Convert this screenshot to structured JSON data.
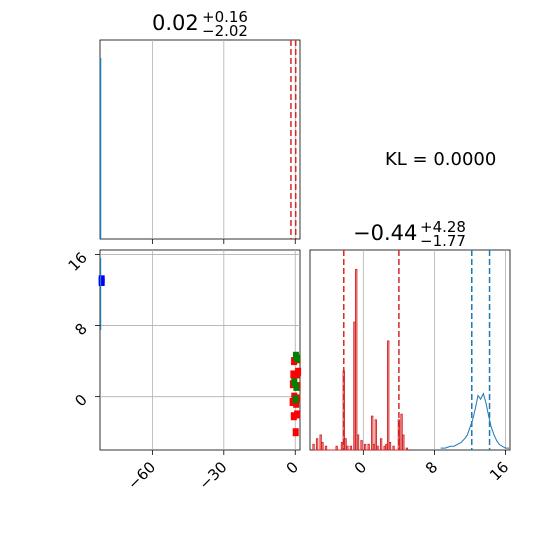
{
  "chart_data": [
    {
      "id": "hist-param-1",
      "type": "line",
      "title": {
        "main": "0.02",
        "sup": "+0.16",
        "sub": "−2.02"
      },
      "x_range": [
        -82,
        2
      ],
      "quantile_lines": [
        -1.8,
        0.2
      ],
      "colors": {
        "red": "#d62728",
        "blue": "#1f77b4"
      },
      "grid": true
    },
    {
      "id": "scatter-2d",
      "type": "scatter",
      "x_range": [
        -82,
        2
      ],
      "y_range": [
        -6,
        16.5
      ],
      "x_ticks": [
        {
          "value": -60,
          "label": "−60"
        },
        {
          "value": -30,
          "label": "−30"
        },
        {
          "value": 0,
          "label": "0"
        }
      ],
      "y_ticks": [
        {
          "value": 0,
          "label": "0"
        },
        {
          "value": 8,
          "label": "8"
        },
        {
          "value": 16,
          "label": "16"
        }
      ],
      "series": [
        {
          "color": "#ff0000",
          "points": [
            [
              1.0,
              4.2
            ],
            [
              -0.5,
              4.0
            ],
            [
              1.2,
              2.8
            ],
            [
              -0.8,
              2.5
            ],
            [
              0.6,
              2.5
            ],
            [
              -1.0,
              1.4
            ],
            [
              1.0,
              1.2
            ],
            [
              -0.4,
              0.0
            ],
            [
              0.9,
              -0.2
            ],
            [
              -1.1,
              -0.6
            ],
            [
              0.4,
              -0.8
            ],
            [
              -0.6,
              -2.2
            ],
            [
              0.8,
              -2.0
            ],
            [
              0.2,
              -4.0
            ]
          ]
        },
        {
          "color": "#008000",
          "points": [
            [
              0.3,
              4.6
            ],
            [
              0.9,
              4.3
            ],
            [
              -0.4,
              1.6
            ],
            [
              0.5,
              1.1
            ],
            [
              0.2,
              -0.3
            ]
          ]
        },
        {
          "color": "#0000ff",
          "points": [
            [
              -81.3,
              13.2
            ],
            [
              -81.3,
              12.9
            ]
          ]
        }
      ],
      "grid": true
    },
    {
      "id": "hist-param-2",
      "type": "line",
      "title": {
        "main": "−0.44",
        "sup": "+4.28",
        "sub": "−1.77"
      },
      "x_range": [
        -6,
        16.5
      ],
      "x_ticks": [
        {
          "value": 0,
          "label": "0"
        },
        {
          "value": 8,
          "label": "8"
        },
        {
          "value": 16,
          "label": "16"
        }
      ],
      "quantile_lines": [
        {
          "value": -2.2,
          "color": "#d62728"
        },
        {
          "value": 4.0,
          "color": "#d62728"
        },
        {
          "value": 12.2,
          "color": "#1f77b4"
        },
        {
          "value": 14.2,
          "color": "#1f77b4"
        }
      ],
      "red_hist": [
        [
          -5.6,
          0.03
        ],
        [
          -5.2,
          0.06
        ],
        [
          -4.8,
          0.08
        ],
        [
          -4.6,
          0.04
        ],
        [
          -4.2,
          0.02
        ],
        [
          -3.0,
          0.02
        ],
        [
          -2.4,
          0.04
        ],
        [
          -2.2,
          0.42
        ],
        [
          -2.0,
          0.06
        ],
        [
          -1.8,
          0.02
        ],
        [
          -1.4,
          0.02
        ],
        [
          -1.0,
          0.68
        ],
        [
          -0.8,
          0.96
        ],
        [
          -0.6,
          0.08
        ],
        [
          -0.2,
          0.05
        ],
        [
          0.2,
          0.03
        ],
        [
          0.6,
          0.03
        ],
        [
          1.0,
          0.18
        ],
        [
          1.2,
          0.03
        ],
        [
          1.4,
          0.16
        ],
        [
          1.6,
          0.02
        ],
        [
          2.0,
          0.06
        ],
        [
          2.4,
          0.02
        ],
        [
          2.6,
          0.03
        ],
        [
          2.8,
          0.58
        ],
        [
          3.0,
          0.04
        ],
        [
          3.4,
          0.02
        ],
        [
          4.0,
          0.16
        ],
        [
          4.3,
          0.19
        ],
        [
          4.5,
          0.08
        ],
        [
          4.9,
          0.01
        ]
      ],
      "blue_hist": [
        [
          8.7,
          0.01
        ],
        [
          9.2,
          0.01
        ],
        [
          9.8,
          0.02
        ],
        [
          10.2,
          0.02
        ],
        [
          10.6,
          0.03
        ],
        [
          11.0,
          0.04
        ],
        [
          11.4,
          0.06
        ],
        [
          11.7,
          0.08
        ],
        [
          12.0,
          0.12
        ],
        [
          12.3,
          0.16
        ],
        [
          12.6,
          0.22
        ],
        [
          12.9,
          0.29
        ],
        [
          13.2,
          0.27
        ],
        [
          13.5,
          0.3
        ],
        [
          13.8,
          0.25
        ],
        [
          14.1,
          0.18
        ],
        [
          14.4,
          0.12
        ],
        [
          14.7,
          0.08
        ],
        [
          15.0,
          0.05
        ],
        [
          15.3,
          0.03
        ],
        [
          15.6,
          0.02
        ],
        [
          16.0,
          0.01
        ],
        [
          16.4,
          0.01
        ]
      ],
      "red_line_points": [
        [
          1.0,
          0.43
        ],
        [
          1.4,
          0.3
        ],
        [
          1.8,
          0.2
        ]
      ],
      "grid": true
    }
  ],
  "annotation": {
    "kl_label": "KL = 0.0000"
  }
}
